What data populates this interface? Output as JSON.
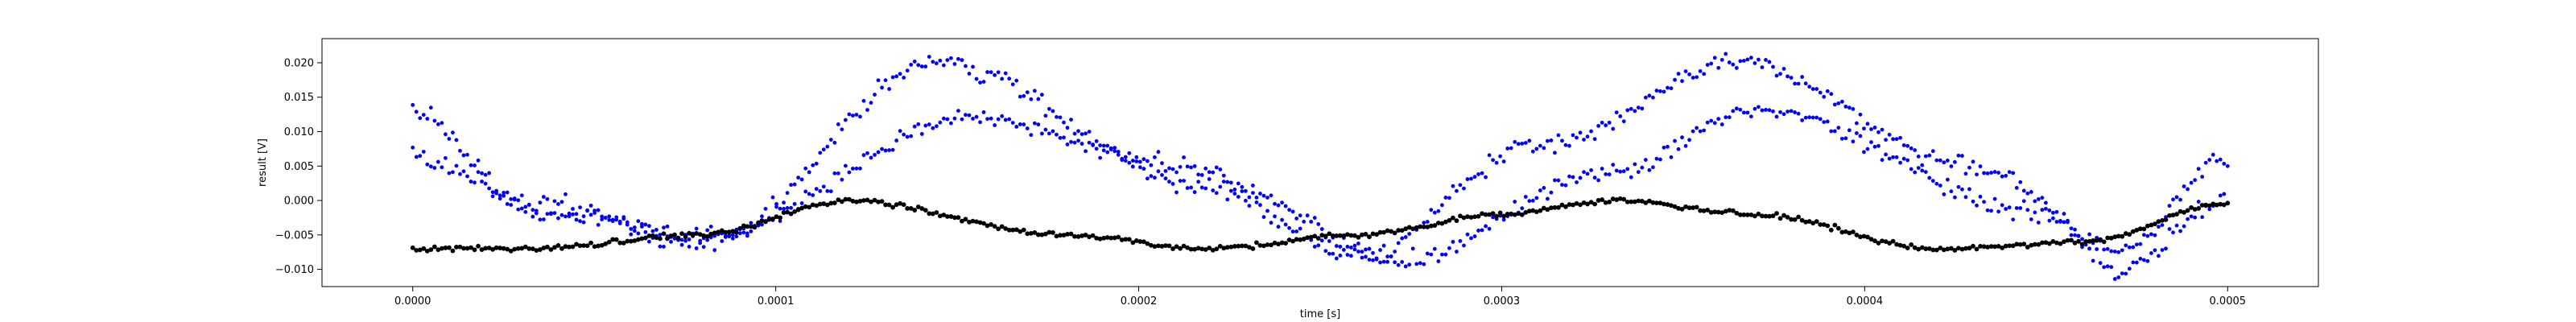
{
  "chart_data": {
    "type": "scatter",
    "title": "",
    "xlabel": "time [s]",
    "ylabel": "result [V]",
    "xlim": [
      -2.5e-05,
      0.000525
    ],
    "ylim": [
      -0.0125,
      0.0235
    ],
    "xticks": [
      0.0,
      0.0001,
      0.0002,
      0.0003,
      0.0004,
      0.0005
    ],
    "xtick_labels": [
      "0.0000",
      "0.0001",
      "0.0002",
      "0.0003",
      "0.0004",
      "0.0005"
    ],
    "yticks": [
      -0.01,
      -0.005,
      0.0,
      0.005,
      0.01,
      0.015,
      0.02
    ],
    "ytick_labels": [
      "−0.010",
      "−0.005",
      "0.000",
      "0.005",
      "0.010",
      "0.015",
      "0.020"
    ],
    "grid": false,
    "legend": "none",
    "n_points_per_series": 500,
    "series": [
      {
        "color": "#0000ff",
        "approx_profile": {
          "t": [
            0.0,
            3e-05,
            8e-05,
            0.000145,
            0.00021,
            0.00026,
            0.00031,
            0.000365,
            0.00043,
            0.00047,
            0.0005
          ],
          "v": [
            0.013,
            0.0,
            -0.006,
            0.02,
            0.005,
            -0.008,
            0.008,
            0.02,
            0.005,
            -0.007,
            0.006
          ]
        }
      },
      {
        "color": "#0000ff",
        "approx_profile": {
          "t": [
            0.0,
            4e-05,
            8e-05,
            0.000155,
            0.00023,
            0.00027,
            0.00033,
            0.00037,
            0.00045,
            0.00047,
            0.0005
          ],
          "v": [
            0.006,
            -0.002,
            -0.005,
            0.012,
            0.001,
            -0.009,
            0.004,
            0.013,
            -0.002,
            -0.01,
            0.0
          ]
        }
      },
      {
        "color": "#000000",
        "approx_profile": {
          "t": [
            0.0,
            3e-05,
            8e-05,
            0.00012,
            0.00018,
            0.00022,
            0.00026,
            0.0003,
            0.00033,
            0.00037,
            0.00042,
            0.00046,
            0.0005
          ],
          "v": [
            -0.007,
            -0.007,
            -0.005,
            0.0,
            -0.005,
            -0.007,
            -0.005,
            -0.002,
            0.0,
            -0.002,
            -0.007,
            -0.006,
            -0.0005
          ]
        }
      }
    ]
  }
}
